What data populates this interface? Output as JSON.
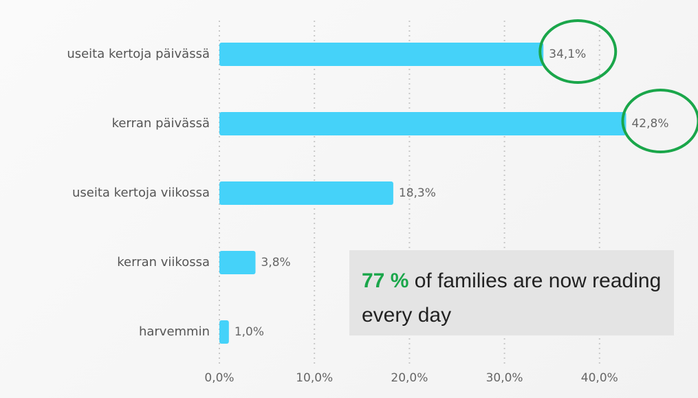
{
  "chart_data": {
    "type": "barh",
    "categories": [
      "useita kertoja päivässä",
      "kerran päivässä",
      "useita kertoja viikossa",
      "kerran viikossa",
      "harvemmin"
    ],
    "values": [
      34.1,
      42.8,
      18.3,
      3.8,
      1.0
    ],
    "value_labels": [
      "34,1%",
      "42,8%",
      "18,3%",
      "3,8%",
      "1,0%"
    ],
    "color": "#45d2f9",
    "xlim": [
      0,
      50
    ],
    "xticks": [
      {
        "value": 0,
        "label": "0,0%"
      },
      {
        "value": 10,
        "label": "10,0%"
      },
      {
        "value": 20,
        "label": "20,0%"
      },
      {
        "value": 30,
        "label": "30,0%"
      },
      {
        "value": 40,
        "label": "40,0%"
      }
    ],
    "grid": true,
    "annotation": {
      "highlight": "77 %",
      "text": "of families are now reading every day"
    }
  }
}
